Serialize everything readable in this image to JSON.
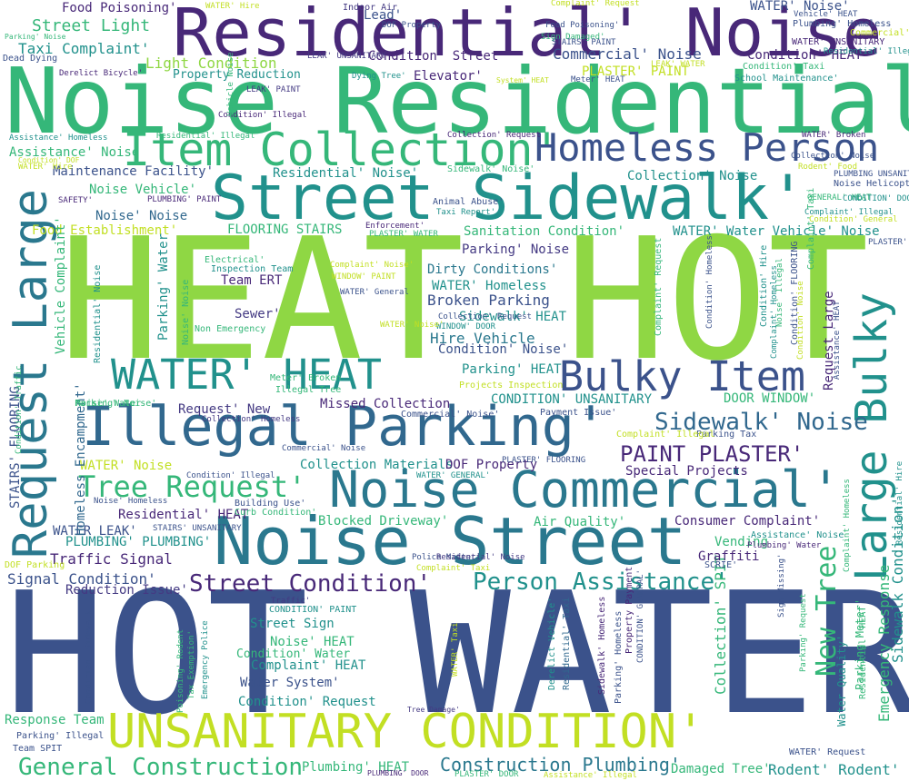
{
  "palette": {
    "bright_green": "#8fd744",
    "yellow_green": "#c2df23",
    "sea_green": "#35b779",
    "teal": "#21918c",
    "blue_teal": "#2a788e",
    "steel_blue": "#31688e",
    "indigo": "#3b528b",
    "deep_purple": "#443a83",
    "dark_purple": "#482878"
  },
  "words": [
    "HOT WATER'",
    "HEAT HOT",
    "Noise Residential'",
    "Residential' Noise",
    "Street Sidewalk'",
    "Illegal Parking'",
    "Noise Street",
    "Noise Commercial'",
    "UNSANITARY CONDITION'",
    "WATER' HEAT",
    "Item Collection'",
    "Homeless Person",
    "Bulky Item",
    "Request Large",
    "Large Bulky",
    "Tree Request'",
    "General Construction",
    "Sidewalk' Noise",
    "Street Condition'",
    "Person Assistance'",
    "PAINT PLASTER'",
    "Construction Plumbing'",
    "New Tree",
    "Street Light",
    "Taxi Complaint'",
    "Light Condition",
    "Condition' Street",
    "Commercial' Noise",
    "Condition' HEAT",
    "Property Reduction",
    "Sanitation Condition'",
    "FLOORING STAIRS",
    "Food Establishment'",
    "Dirty Conditions'",
    "Broken Parking",
    "Hire Vehicle",
    "Traffic Signal",
    "Signal Condition'",
    "Reduction Issue'",
    "Residential' HEAT",
    "WATER LEAK'",
    "PLUMBING' PLUMBING'",
    "Consumer Complaint'",
    "Air Quality'",
    "Blocked Driveway'",
    "Collection Materials",
    "Special Projects",
    "Missed Collection",
    "Request' New",
    "WATER' Noise",
    "Noise Vehicle'",
    "Noise' Noise",
    "Street Sign",
    "Noise' HEAT",
    "Complaint' HEAT",
    "Water System'",
    "Condition' Request",
    "Condition' Water",
    "Response Team",
    "Plumbing' HEAT",
    "Rodent' Rodent'",
    "Damaged Tree'",
    "Maintenance Facility'",
    "Residential' Noise'",
    "Assistance' Noise",
    "Parking' Noise",
    "Parking' HEAT",
    "Sidewalk' HEAT",
    "Condition' Noise'",
    "WATER' Homeless",
    "WATER' Water Vehicle' Noise",
    "CONDITION' UNSANITARY",
    "DOOR WINDOW'",
    "Sewer'",
    "Team ERT",
    "Homeless Encampment'",
    "Vehicle Complaint'",
    "Request Large",
    "Emergency Response",
    "Sidewalk Condition'",
    "Parking Meter'",
    "Water Quality'",
    "Collection' SPIT",
    "DOF Property",
    "Vending",
    "Graffiti",
    "PLASTER' PAINT",
    "Elevator'",
    "Lead'",
    "WATER' Noise'",
    "Collection' Noise",
    "Sidewalk' Noise'",
    "Animal Abuse'",
    "Taxi Report'",
    "Noise Helicopter'",
    "Electrical'",
    "Inspection Team",
    "WATER' General",
    "Non Emergency",
    "Meter' Broken",
    "Illegal Tree",
    "Noise' Water",
    "Commercial' Noise'",
    "Payment Issue'",
    "Parking Tax",
    "Projects Inspection",
    "Building Use'",
    "Curb Condition'",
    "Noise' Homeless",
    "STAIRS' UNSANITARY",
    "Police Matter'",
    "Complaint' Taxi",
    "SCRIE'",
    "DOF Parking",
    "Traffic'",
    "CONDITION' PAINT",
    "Parking' Illegal",
    "Team SPIT",
    "WATER' Request",
    "Dead Dying",
    "Derelict Bicycle'",
    "LEAK' PAINT",
    "Dying Tree'",
    "Meter' HEAT",
    "School Maintenance'",
    "Condition' Taxi",
    "Indoor Air",
    "Food Poisoning'",
    "Sign Damaged'",
    "STAIRS' PAINT",
    "Vehicle' HEAT",
    "Plumbing' Homeless",
    "WATER' UNSANITARY",
    "Commercial' HEAT",
    "WATER' Hire",
    "Parking' Noise",
    "Assistance' Homeless",
    "Residential' Illegal",
    "Collection' Request",
    "WATER' Broken",
    "Rodent' Food",
    "PLUMBING UNSANITARY",
    "GENERAL' HEAT",
    "Complaint' Illegal",
    "Condition' General",
    "PLASTER' PLUMBING'",
    "SAFETY'",
    "PLUMBING' PAINT",
    "Enforcement'",
    "PLASTER' WATER",
    "Condition' Illegal",
    "LEAK' UNSANITARY",
    "LEAK' WATER",
    "System' HEAT",
    "Condition' DOF",
    "Vehicle Noise",
    "Complaint' Noise'",
    "WINDOW' PAINT",
    "WINDOW' DOOR",
    "Collection' Homeless",
    "Poisoning' Rodent",
    "Tax Exemption'",
    "Emergency Police",
    "Condition' Sidewalk",
    "Derelict Vehicle'",
    "Residential' Taxi",
    "Sidewalk' Homeless",
    "Parking' Homeless",
    "Property Payment",
    "CONDITION' GENERAL'",
    "WATER' Taxi",
    "Tree Damage'",
    "PLUMBING' DOOR",
    "PLASTER' DOOR",
    "Assistance' Illegal",
    "Parking' Request",
    "Complaint' Homeless",
    "Residential' Hire",
    "Condition' Hire",
    "Noise' Illegal",
    "Condition' FLOORING",
    "Assistance' HEAT",
    "Complaint' Request",
    "Condition' Homeless",
    "Parking' Water",
    "Noise' Noise",
    "Residential' Noise",
    "STAIRS' FLOORING",
    "Condition' Illegal",
    "WATER' GENERAL'",
    "PLASTER' FLOORING",
    "CONDITION' DOOR",
    "Complaint' Illegal",
    "Plumbing' Water",
    "Assistance' Noise",
    "Sign Missing'",
    "Condition' Traffic",
    "Complaint' Homeless",
    "Residential' Noise",
    "Complaint' Request",
    "Complaint' Taxi",
    "Food Poisoning'",
    "Parking' Noise'",
    "WATER' Noise'",
    "Collection' Noise",
    "Commercial' Noise",
    "Residential' HEAT",
    "DOF Property",
    "Residential' Illegal",
    "Collection' Request",
    "WATER' Hire",
    "Condition' Noise",
    "Vehicle Noise",
    "Assistance' HEAT"
  ]
}
